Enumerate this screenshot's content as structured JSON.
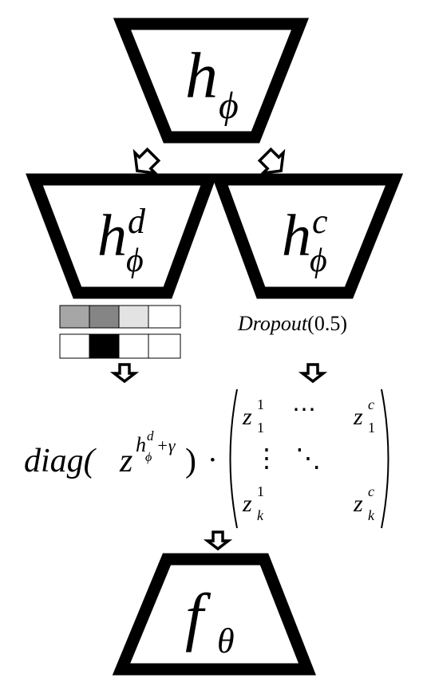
{
  "nodes": {
    "top": {
      "base": "h",
      "sub": "ϕ",
      "sup": ""
    },
    "left": {
      "base": "h",
      "sub": "ϕ",
      "sup": "d"
    },
    "right": {
      "base": "h",
      "sub": "ϕ",
      "sup": "c"
    },
    "bottom": {
      "base": "f",
      "sub": "θ",
      "sup": ""
    }
  },
  "dropout": {
    "name": "Dropout",
    "open": "(",
    "value": "0.5",
    "close": ")"
  },
  "mask_grid": {
    "row1": [
      "#a6a6a6",
      "#858585",
      "#e3e3e3",
      "#ffffff"
    ],
    "row2": [
      "#ffffff",
      "#000000",
      "#ffffff",
      "#ffffff"
    ]
  },
  "diag_expr": {
    "func": "diag(",
    "base": "z",
    "exp_h": "h",
    "exp_sub": "ϕ",
    "exp_sup": "d",
    "exp_rest": "+γ",
    "close": ")",
    "dot": "·"
  },
  "matrix": {
    "z11": {
      "base": "z",
      "sub": "1",
      "sup": "1"
    },
    "z1c": {
      "base": "z",
      "sub": "1",
      "sup": "c"
    },
    "zk1": {
      "base": "z",
      "sub": "k",
      "sup": "1"
    },
    "zkc": {
      "base": "z",
      "sub": "k",
      "sup": "c"
    },
    "hdots": "⋯",
    "vdots": "⋮",
    "ddots": "⋱"
  }
}
